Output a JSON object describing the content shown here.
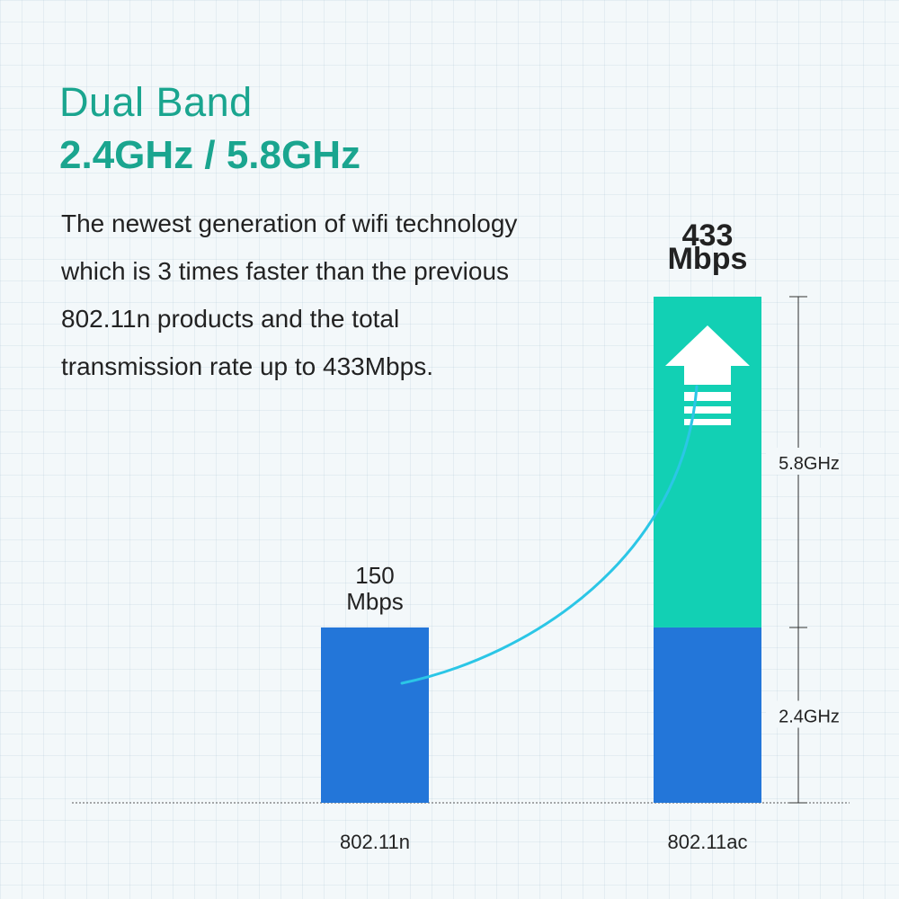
{
  "heading": {
    "title": "Dual Band",
    "subtitle": "2.4GHz / 5.8GHz"
  },
  "description": [
    "The newest generation of wifi technology",
    "which is 3 times faster than the previous",
    "802.11n products and the total",
    "transmission rate up to 433Mbps."
  ],
  "colors": {
    "accent_text": "#1aa58f",
    "band_24": "#2376d9",
    "band_58": "#12d0b4",
    "curve": "#2bc6e6"
  },
  "chart_data": {
    "type": "bar",
    "stacked": true,
    "categories": [
      "802.11n",
      "802.11ac"
    ],
    "series": [
      {
        "name": "2.4GHz",
        "values": [
          150,
          150
        ]
      },
      {
        "name": "5.8GHz",
        "values": [
          0,
          283
        ]
      }
    ],
    "value_labels": [
      {
        "value": "150",
        "unit": "Mbps"
      },
      {
        "value": "433",
        "unit": "Mbps"
      }
    ],
    "band_labels": [
      "2.4GHz",
      "5.8GHz"
    ],
    "ylim": [
      0,
      433
    ],
    "grid": false,
    "annotations": [
      "curved arrow from 802.11n bar to 802.11ac bar",
      "up arrow on 5.8GHz segment"
    ]
  }
}
